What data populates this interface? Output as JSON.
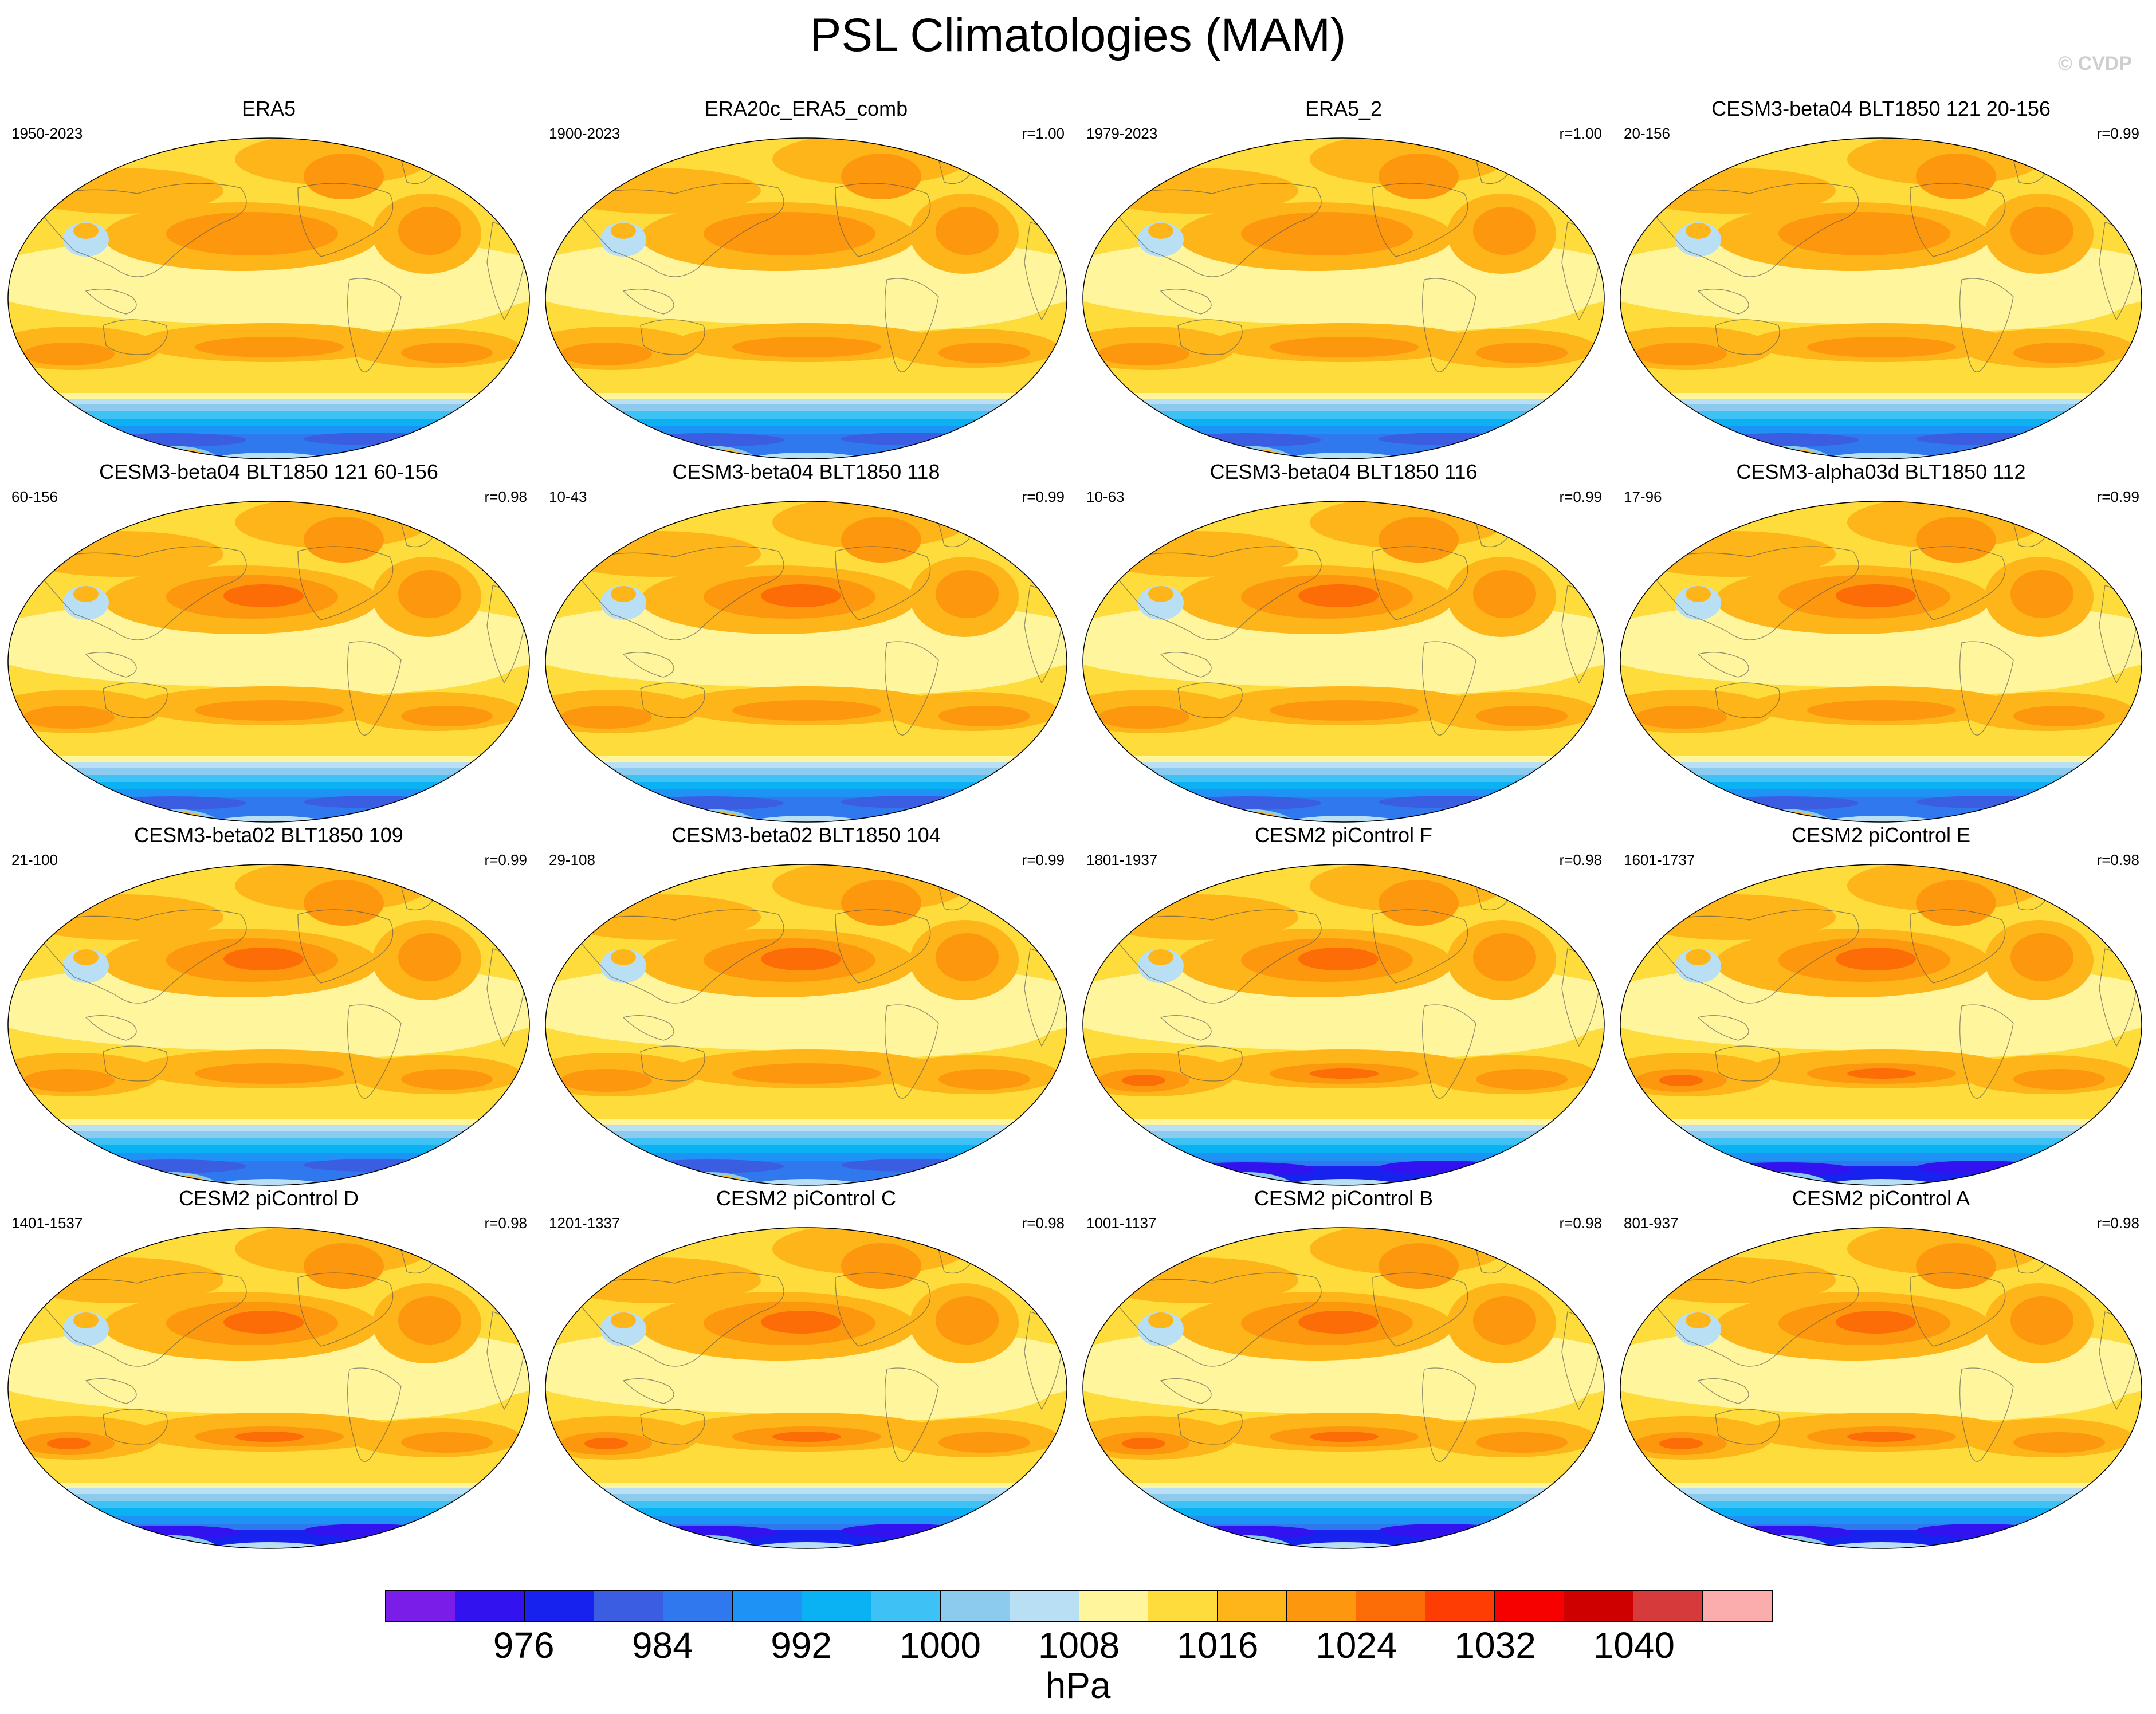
{
  "title": "PSL Climatologies (MAM)",
  "watermark": "© CVDP",
  "panels": [
    {
      "title": "ERA5",
      "period": "1950-2023",
      "corr": "",
      "variant": "obs"
    },
    {
      "title": "ERA20c_ERA5_comb",
      "period": "1900-2023",
      "corr": "r=1.00",
      "variant": "obs"
    },
    {
      "title": "ERA5_2",
      "period": "1979-2023",
      "corr": "r=1.00",
      "variant": "obs"
    },
    {
      "title": "CESM3-beta04 BLT1850 121 20-156",
      "period": "20-156",
      "corr": "r=0.99",
      "variant": "obs"
    },
    {
      "title": "CESM3-beta04 BLT1850 121 60-156",
      "period": "60-156",
      "corr": "r=0.98",
      "variant": "cesm3"
    },
    {
      "title": "CESM3-beta04 BLT1850 118",
      "period": "10-43",
      "corr": "r=0.99",
      "variant": "cesm3"
    },
    {
      "title": "CESM3-beta04 BLT1850 116",
      "period": "10-63",
      "corr": "r=0.99",
      "variant": "cesm3"
    },
    {
      "title": "CESM3-alpha03d BLT1850 112",
      "period": "17-96",
      "corr": "r=0.99",
      "variant": "cesm3"
    },
    {
      "title": "CESM3-beta02 BLT1850 109",
      "period": "21-100",
      "corr": "r=0.99",
      "variant": "cesm3"
    },
    {
      "title": "CESM3-beta02 BLT1850 104",
      "period": "29-108",
      "corr": "r=0.99",
      "variant": "cesm3"
    },
    {
      "title": "CESM2 piControl F",
      "period": "1801-1937",
      "corr": "r=0.98",
      "variant": "cesm2"
    },
    {
      "title": "CESM2 piControl E",
      "period": "1601-1737",
      "corr": "r=0.98",
      "variant": "cesm2"
    },
    {
      "title": "CESM2 piControl D",
      "period": "1401-1537",
      "corr": "r=0.98",
      "variant": "cesm2"
    },
    {
      "title": "CESM2 piControl C",
      "period": "1201-1337",
      "corr": "r=0.98",
      "variant": "cesm2"
    },
    {
      "title": "CESM2 piControl B",
      "period": "1001-1137",
      "corr": "r=0.98",
      "variant": "cesm2"
    },
    {
      "title": "CESM2 piControl A",
      "period": "801-937",
      "corr": "r=0.98",
      "variant": "cesm2"
    }
  ],
  "colorbar": {
    "colors": [
      "#7a1de8",
      "#3213f0",
      "#1722ee",
      "#3a5de2",
      "#2f78ee",
      "#1f93f5",
      "#0ab2f4",
      "#3ec2f6",
      "#8ccaee",
      "#b9dff5",
      "#fff59d",
      "#fddc3c",
      "#fdb51a",
      "#fd970d",
      "#fc6d08",
      "#fd3d03",
      "#f70000",
      "#cf0000",
      "#d63a3a",
      "#fbadad"
    ],
    "levels": [
      972,
      976,
      980,
      984,
      988,
      992,
      996,
      1000,
      1004,
      1008,
      1012,
      1016,
      1020,
      1024,
      1028,
      1032,
      1036,
      1040,
      1044
    ],
    "tick_labels": [
      "976",
      "984",
      "992",
      "1000",
      "1008",
      "1016",
      "1024",
      "1032",
      "1040"
    ],
    "units": "hPa"
  }
}
